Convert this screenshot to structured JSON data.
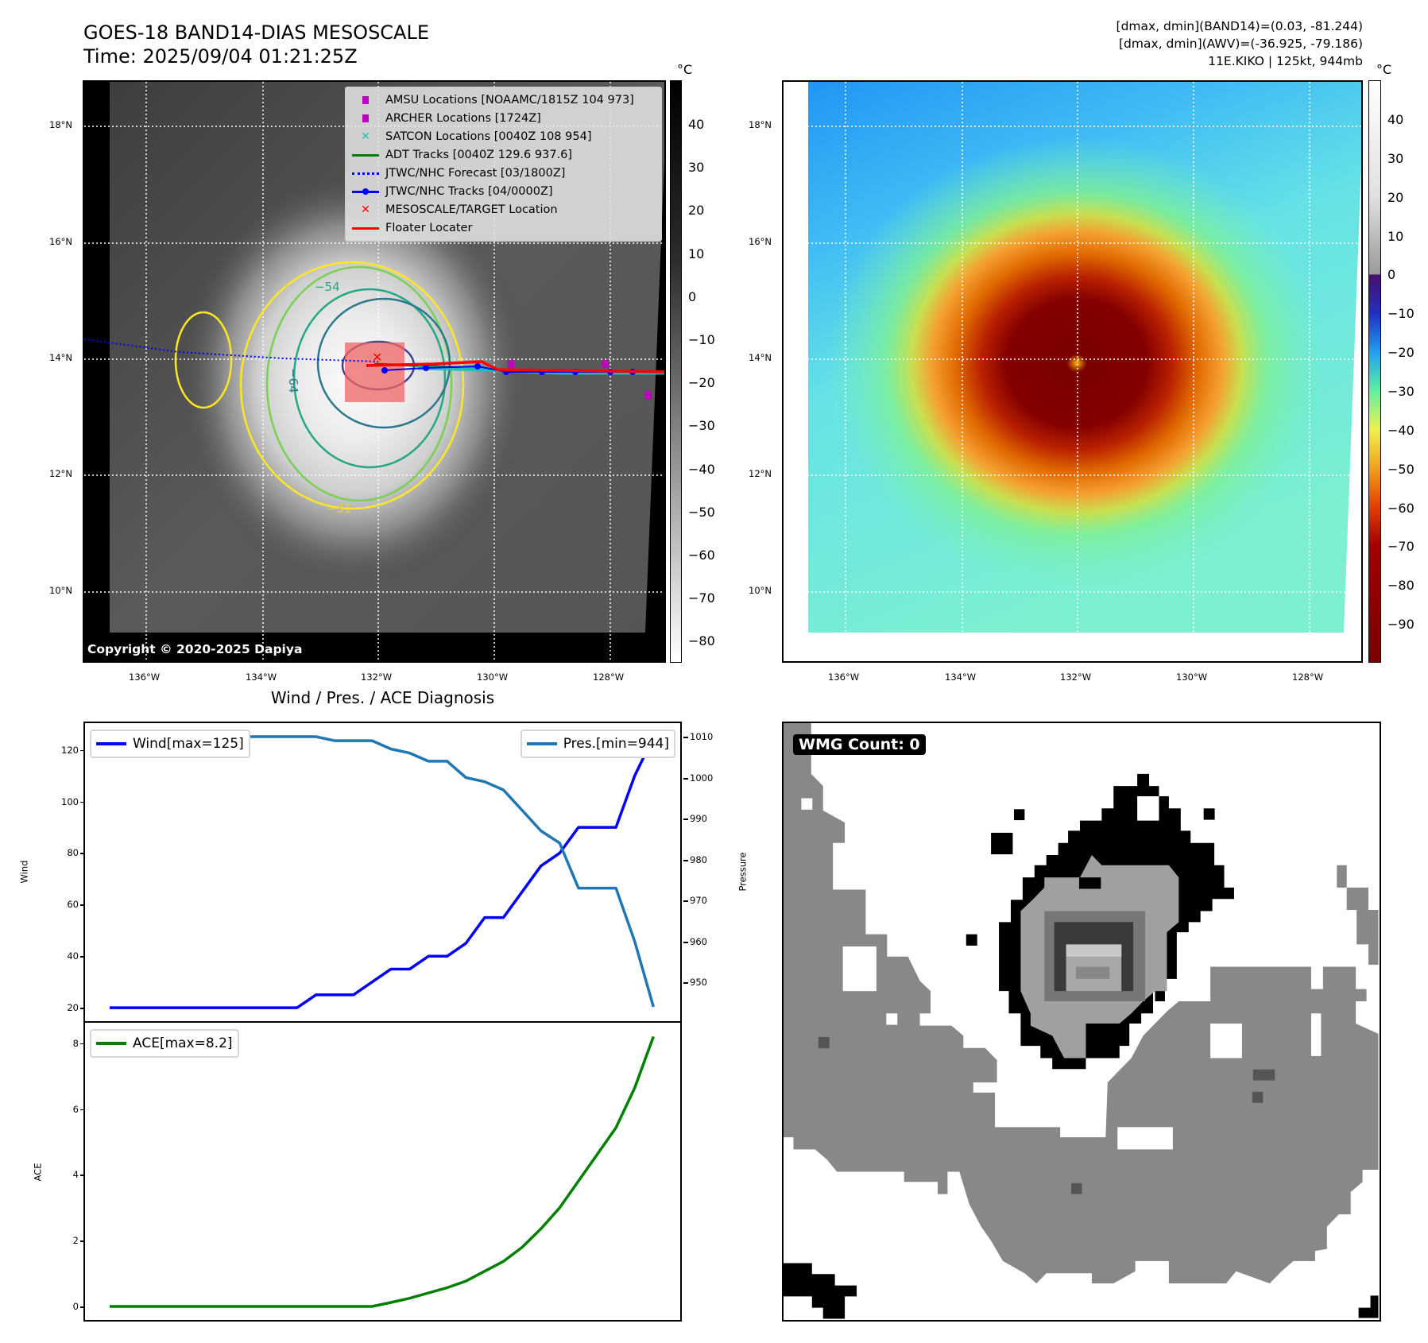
{
  "header": {
    "title": "GOES-18 BAND14-DIAS MESOSCALE",
    "time": "Time: 2025/09/04 01:21:25Z"
  },
  "info": {
    "line1": "[dmax, dmin](BAND14)=(0.03, -81.244)",
    "line2": "[dmax, dmin](AWV)=(-36.925, -79.186)",
    "line3": "11E.KIKO | 125kt, 944mb"
  },
  "map": {
    "lat_labels": [
      "18°N",
      "16°N",
      "14°N",
      "12°N",
      "10°N"
    ],
    "lon_labels": [
      "136°W",
      "134°W",
      "132°W",
      "130°W",
      "128°W"
    ],
    "colorbar_unit": "°C",
    "ir_colorbar_ticks": [
      "40",
      "30",
      "20",
      "10",
      "0",
      "−10",
      "−20",
      "−30",
      "−40",
      "−50",
      "−60",
      "−70",
      "−80"
    ],
    "awv_colorbar_ticks": [
      "40",
      "30",
      "20",
      "10",
      "0",
      "−10",
      "−20",
      "−30",
      "−40",
      "−50",
      "−60",
      "−70",
      "−80",
      "−90"
    ],
    "contour_labels": [
      "−54",
      "−64",
      "−31"
    ],
    "copyright": "Copyright © 2020-2025 Dapiya"
  },
  "legend": [
    {
      "label": "AMSU Locations [NOAAMC/1815Z 104 973]",
      "icon": "square-marker",
      "color": "#c000c0"
    },
    {
      "label": "ARCHER Locations [1724Z]",
      "icon": "square-marker",
      "color": "#c000c0"
    },
    {
      "label": "SATCON Locations [0040Z 108 954]",
      "icon": "x-marker",
      "color": "#20c0c0"
    },
    {
      "label": "ADT Tracks [0040Z 129.6 937.6]",
      "icon": "solid-line",
      "color": "#008000"
    },
    {
      "label": "JTWC/NHC Forecast [03/1800Z]",
      "icon": "dotted-line",
      "color": "#0000ff"
    },
    {
      "label": "JTWC/NHC Tracks [04/0000Z]",
      "icon": "line-dot",
      "color": "#0000ff"
    },
    {
      "label": "MESOSCALE/TARGET Location",
      "icon": "x-marker",
      "color": "#ff0000"
    },
    {
      "label": "Floater Locater",
      "icon": "solid-line",
      "color": "#ff0000"
    }
  ],
  "chart_data": {
    "type": "line",
    "title": "Wind / Pres. / ACE Diagnosis",
    "x": [
      0,
      1,
      2,
      3,
      4,
      5,
      6,
      7,
      8,
      9,
      10,
      11,
      12,
      13,
      14,
      15,
      16,
      17,
      18,
      19,
      20,
      21,
      22,
      23,
      24,
      25,
      26,
      27,
      28,
      29
    ],
    "panels": [
      {
        "ylabel": "Wind",
        "ylim": [
          14.8,
          130.4
        ],
        "yticks": [
          20,
          40,
          60,
          80,
          100,
          120
        ],
        "y2label": "Pressure",
        "y2lim": [
          940.5,
          1013.3
        ],
        "y2ticks": [
          950,
          960,
          970,
          980,
          990,
          1000,
          1010
        ],
        "series": [
          {
            "name": "Wind[max=125]",
            "axis": "left",
            "color": "#0000ff",
            "values": [
              20,
              20,
              20,
              20,
              20,
              20,
              20,
              20,
              20,
              20,
              20,
              25,
              25,
              25,
              30,
              35,
              35,
              40,
              40,
              45,
              55,
              55,
              65,
              75,
              80,
              90,
              90,
              90,
              110,
              125
            ]
          },
          {
            "name": "Pres.[min=944]",
            "axis": "right",
            "color": "#1f77b4",
            "values": [
              1010,
              1010,
              1010,
              1010,
              1010,
              1010,
              1010,
              1010,
              1010,
              1010,
              1010,
              1010,
              1009,
              1009,
              1009,
              1007,
              1006,
              1004,
              1004,
              1000,
              999,
              997,
              992,
              987,
              984,
              973,
              973,
              973,
              960,
              944
            ]
          }
        ]
      },
      {
        "ylabel": "ACE",
        "ylim": [
          -0.41,
          8.62
        ],
        "yticks": [
          0,
          2,
          4,
          6,
          8
        ],
        "series": [
          {
            "name": "ACE[max=8.2]",
            "axis": "left",
            "color": "#008000",
            "values": [
              0,
              0,
              0,
              0,
              0,
              0,
              0,
              0,
              0,
              0,
              0,
              0,
              0,
              0,
              0,
              0.12,
              0.25,
              0.41,
              0.57,
              0.77,
              1.07,
              1.37,
              1.8,
              2.36,
              3.0,
              3.81,
              4.62,
              5.43,
              6.64,
              8.2
            ]
          }
        ]
      }
    ],
    "xlim": [
      -1.31,
      30.43
    ]
  },
  "wmg": {
    "label": "WMG Count: 0"
  }
}
